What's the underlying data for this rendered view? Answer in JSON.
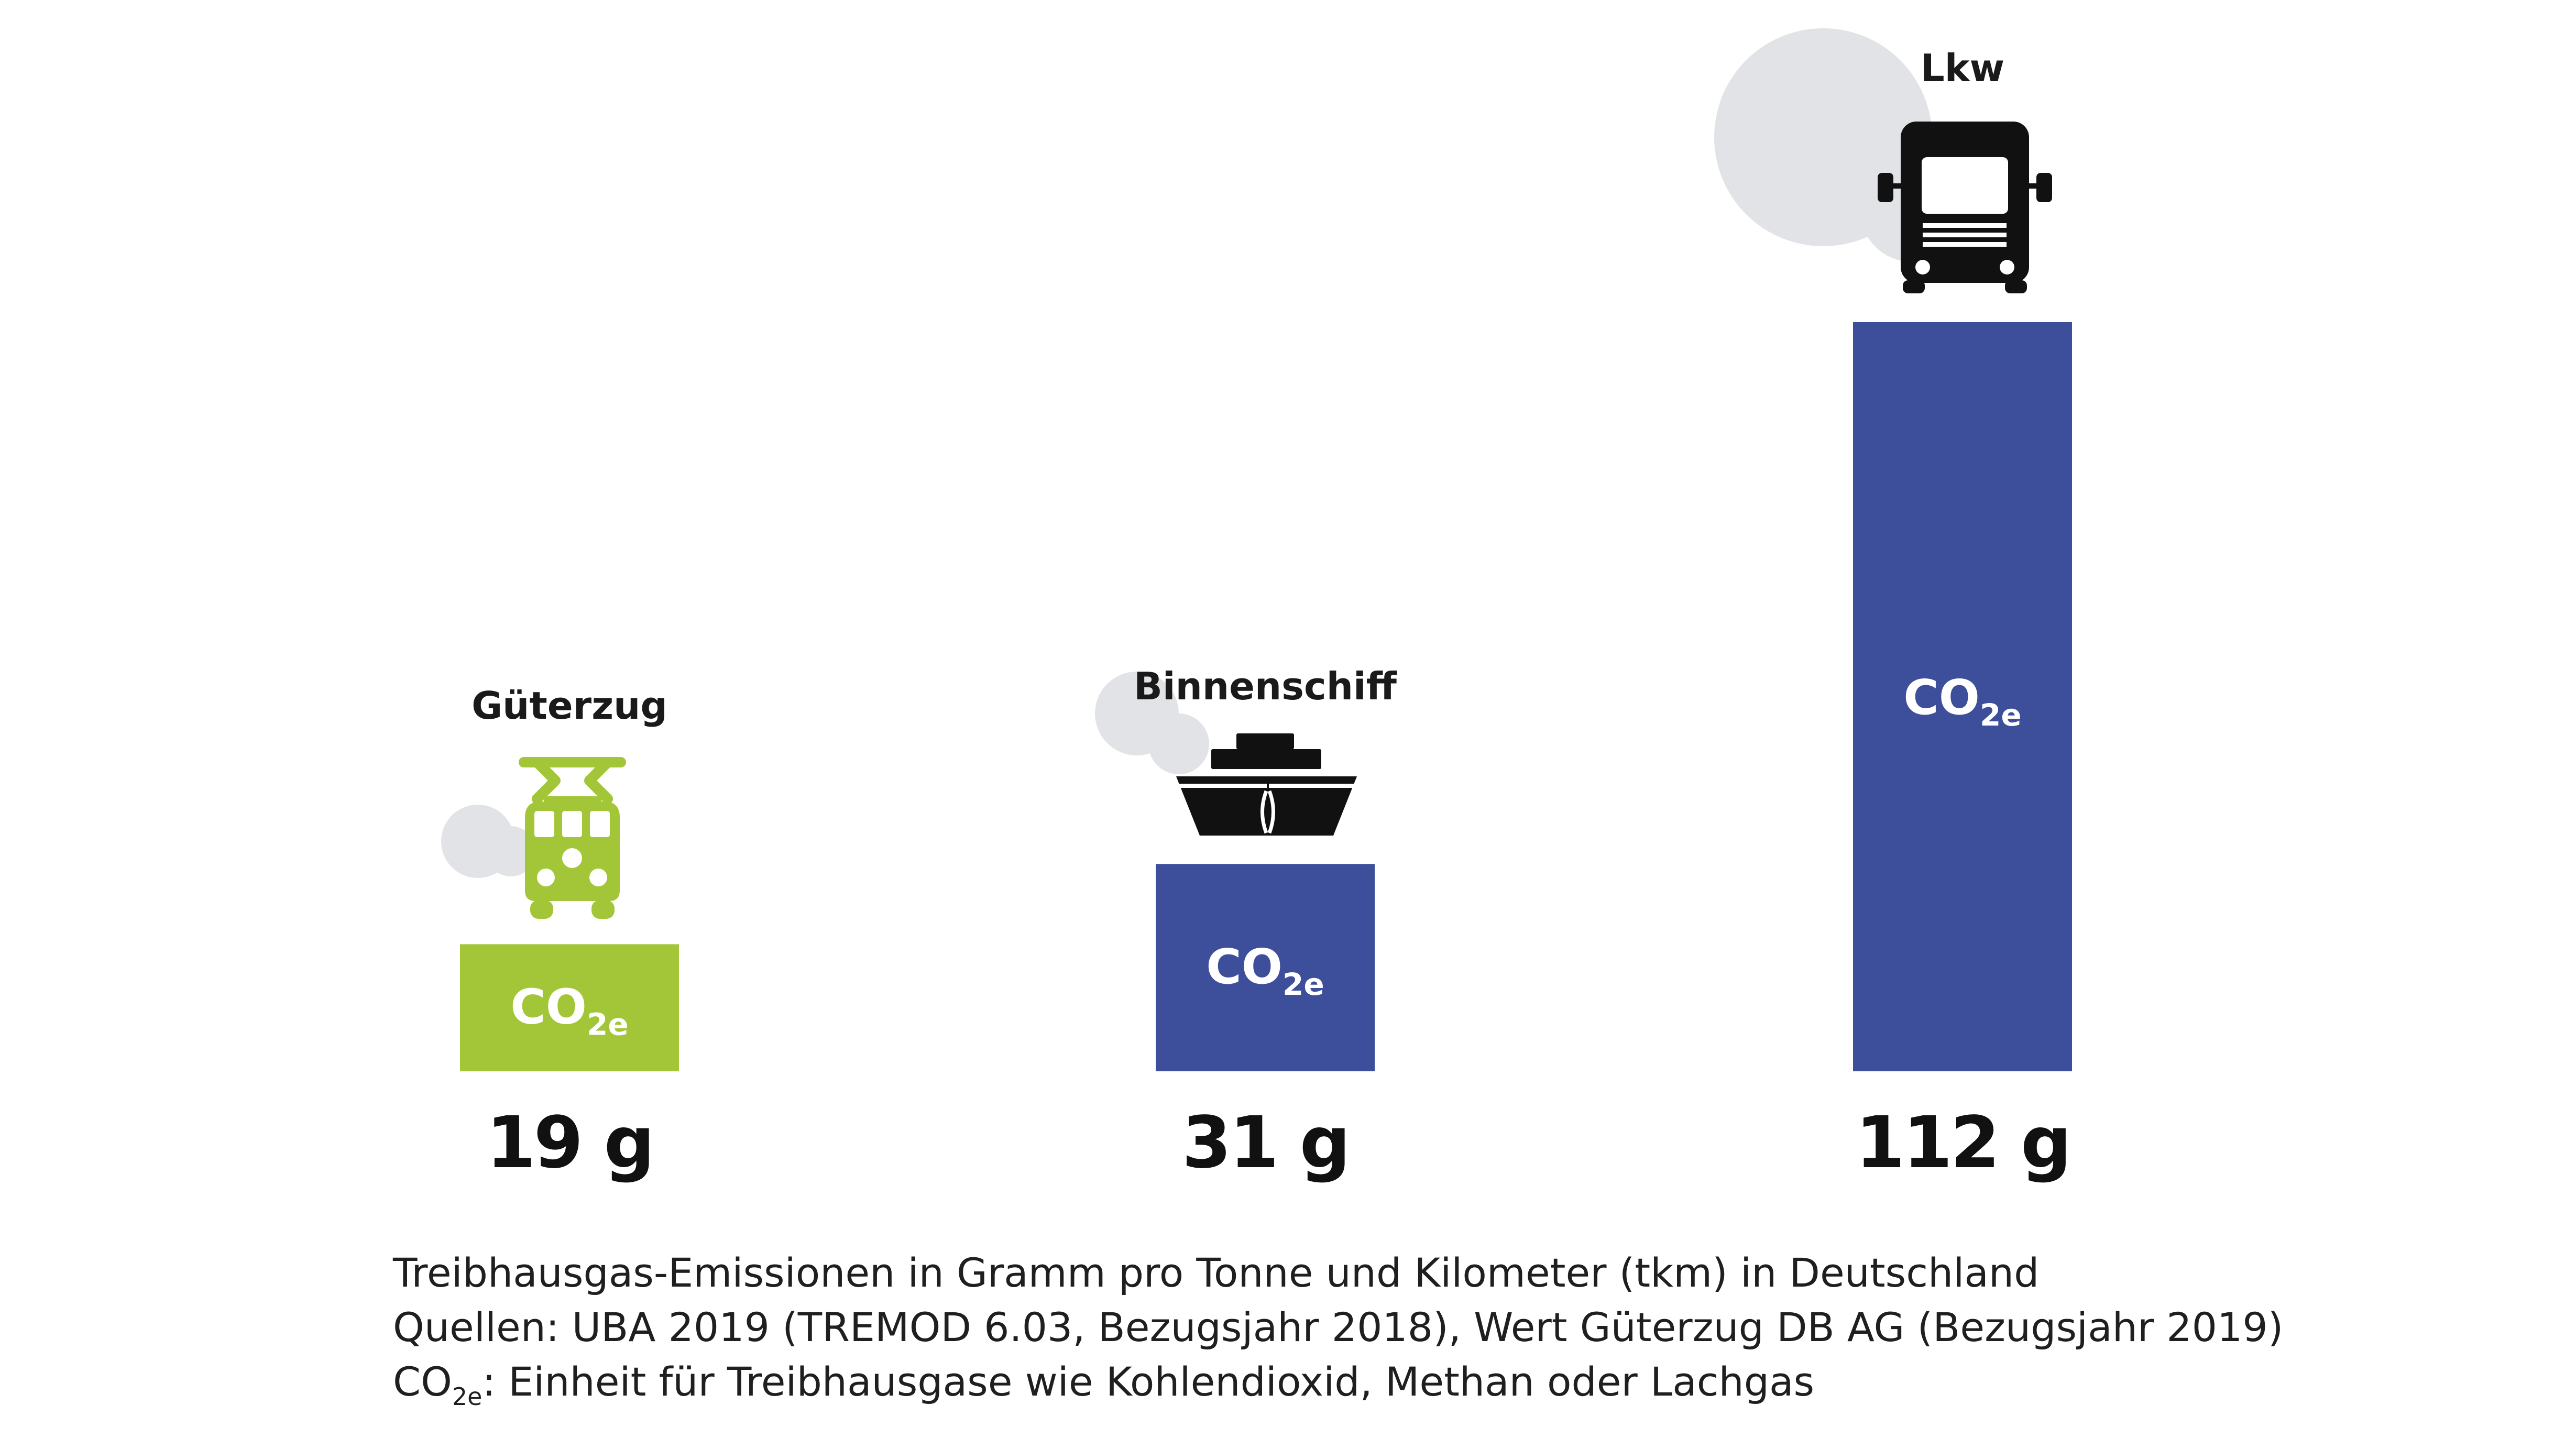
{
  "chart_data": {
    "type": "bar",
    "categories": [
      "Güterzug",
      "Binnenschiff",
      "Lkw"
    ],
    "values": [
      19,
      31,
      112
    ],
    "value_labels": [
      "19 g",
      "31 g",
      "112 g"
    ],
    "icons": [
      "freight-train-icon",
      "inland-ship-icon",
      "truck-icon"
    ],
    "bar_colors": [
      "#a3c639",
      "#3d4e9a",
      "#3d4e9a"
    ],
    "bar_text": {
      "main": "CO",
      "sub": "2e"
    },
    "ylim": [
      0,
      112
    ],
    "grid": false,
    "legend": "none"
  },
  "colors": {
    "green": "#a3c639",
    "blue": "#3d4e9a",
    "cloud": "#e2e3e7",
    "icon_dark": "#111111"
  },
  "footnotes": {
    "line1": "Treibhausgas-Emissionen in Gramm pro Tonne und Kilometer (tkm) in Deutschland",
    "line2": "Quellen: UBA 2019 (TREMOD 6.03, Bezugsjahr 2018), Wert Güterzug DB AG (Bezugsjahr 2019)",
    "line3_prefix": "CO",
    "line3_sub": "2e",
    "line3_text": ": Einheit für Treibhausgase wie Kohlendioxid, Methan oder Lachgas"
  }
}
